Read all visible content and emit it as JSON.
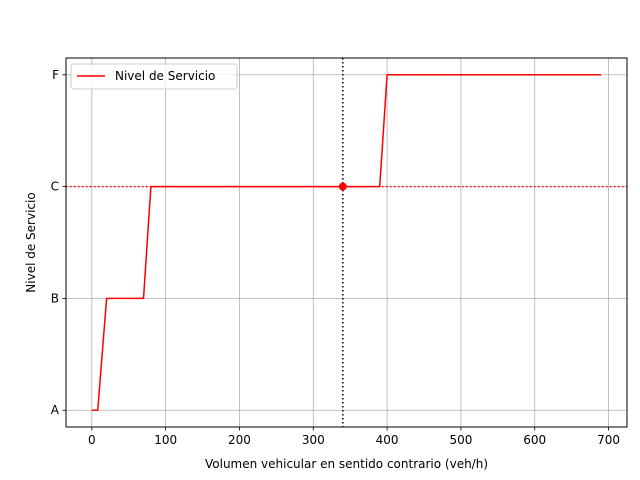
{
  "chart_data": {
    "type": "line",
    "title": "",
    "xlabel": "Volumen vehicular en sentido contrario (veh/h)",
    "ylabel": "Nivel de Servicio",
    "xlim": [
      -35,
      725
    ],
    "ylim": [
      -0.15,
      3.15
    ],
    "xticks": [
      0,
      100,
      200,
      300,
      400,
      500,
      600,
      700
    ],
    "yticks": [
      {
        "value": 0,
        "label": "A"
      },
      {
        "value": 1,
        "label": "B"
      },
      {
        "value": 2,
        "label": "C"
      },
      {
        "value": 3,
        "label": "F"
      }
    ],
    "grid": true,
    "legend": {
      "position": "top-left"
    },
    "series": [
      {
        "name": "Nivel de Servicio",
        "color": "#ff0000",
        "x": [
          0,
          8,
          20,
          70,
          80,
          390,
          400,
          690
        ],
        "y": [
          0,
          0,
          1,
          1,
          2,
          2,
          3,
          3
        ]
      }
    ],
    "reference_lines": {
      "vertical": {
        "x": 340,
        "color": "#000000",
        "style": "dotted"
      },
      "horizontal": {
        "y": 2,
        "color": "#ff0000",
        "style": "dotted"
      }
    },
    "marker": {
      "x": 340,
      "y": 2,
      "color": "#ff0000"
    }
  }
}
